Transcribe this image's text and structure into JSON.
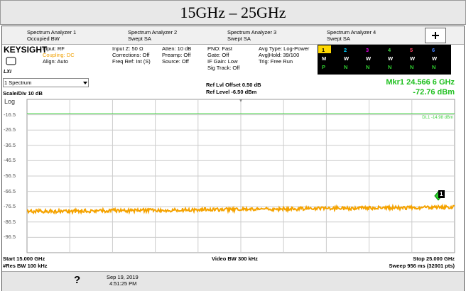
{
  "header": {
    "title": "15GHz – 25GHz"
  },
  "tabs": [
    {
      "title": "Spectrum Analyzer 1",
      "subtitle": "Occupied BW"
    },
    {
      "title": "Spectrum Analyzer 2",
      "subtitle": "Swept SA"
    },
    {
      "title": "Spectrum Analyzer 3",
      "subtitle": "Swept SA"
    },
    {
      "title": "Spectrum Analyzer 4",
      "subtitle": "Swept SA"
    }
  ],
  "logo": "KEYSIGHT",
  "logo_sub": "LXI",
  "settings": [
    [
      "Input: RF",
      "Coupling: DC",
      "Align: Auto"
    ],
    [
      "Input Z: 50 Ω",
      "Corrections: Off",
      "Freq Ref: Int (S)"
    ],
    [
      "Atten: 10 dB",
      "Preamp: Off",
      "Source: Off"
    ],
    [
      "PNO: Fast",
      "Gate: Off",
      "IF Gain: Low",
      "Sig Track: Off"
    ],
    [
      "Avg Type: Log-Power",
      "Avg|Hold: 39/100",
      "Trig: Free Run"
    ]
  ],
  "trace_table": [
    [
      "1",
      "2",
      "3",
      "4",
      "5",
      "6"
    ],
    [
      "M",
      "W",
      "W",
      "W",
      "W",
      "W"
    ],
    [
      "P",
      "N",
      "N",
      "N",
      "N",
      "N"
    ]
  ],
  "window": {
    "selector": "1 Spectrum",
    "scale": "Scale/Div 10 dB",
    "mode": "Log",
    "ref_offset": "Ref Lvl Offset 0.50 dB",
    "ref_level": "Ref Level -6.50 dBm",
    "marker_freq": "Mkr1 24.566 6 GHz",
    "marker_level": "-72.76 dBm"
  },
  "plot": {
    "y_labels": [
      "-16.5",
      "-26.5",
      "-36.5",
      "-46.5",
      "-56.5",
      "-66.5",
      "-76.5",
      "-86.5",
      "-96.5"
    ],
    "display_line": "DL1 -14.98 dBm",
    "marker_label": "1"
  },
  "footer": {
    "start": "Start 15.000 GHz",
    "rbw": "#Res BW 100 kHz",
    "vbw": "Video BW 300 kHz",
    "stop": "Stop 25.000 GHz",
    "sweep": "Sweep 956 ms (32001 pts)"
  },
  "taskbar": {
    "help": "?",
    "date": "Sep 19, 2019",
    "time": "4:51:25 PM"
  }
}
